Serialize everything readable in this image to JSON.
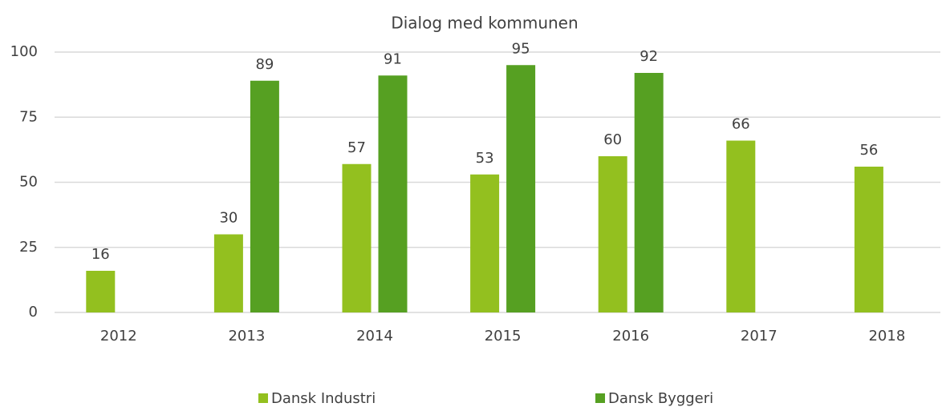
{
  "chart_data": {
    "type": "bar",
    "title": "Dialog med kommunen",
    "categories": [
      "2012",
      "2013",
      "2014",
      "2015",
      "2016",
      "2017",
      "2018"
    ],
    "series": [
      {
        "name": "Dansk Industri",
        "color": "#93c01f",
        "values": [
          16,
          30,
          57,
          53,
          60,
          66,
          56
        ]
      },
      {
        "name": "Dansk Byggeri",
        "color": "#56a022",
        "values": [
          null,
          89,
          91,
          95,
          92,
          null,
          null
        ]
      }
    ],
    "ylim": [
      0,
      100
    ],
    "yticks": [
      0,
      25,
      50,
      75,
      100
    ],
    "grid": true,
    "legend": "bottom"
  }
}
